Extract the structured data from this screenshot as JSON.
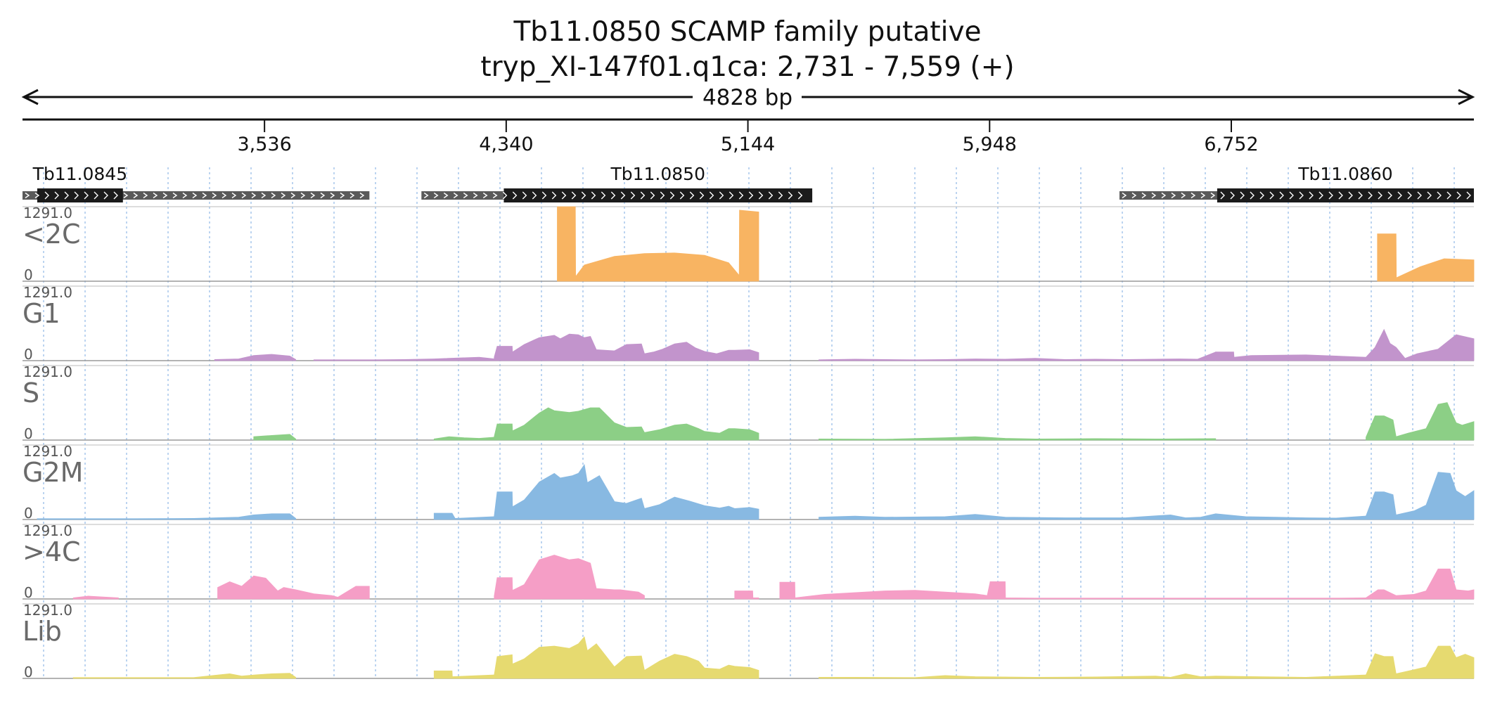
{
  "header": {
    "title": "Tb11.0850  SCAMP family  putative",
    "subtitle": "tryp_XI-147f01.q1ca: 2,731 - 7,559 (+)",
    "span_label": "4828 bp"
  },
  "chart_data": {
    "type": "area",
    "x_range": [
      2731,
      7559
    ],
    "x_ticks": [
      {
        "value": 3536,
        "label": "3,536"
      },
      {
        "value": 4340,
        "label": "4,340"
      },
      {
        "value": 5144,
        "label": "5,144"
      },
      {
        "value": 5948,
        "label": "5,948"
      },
      {
        "value": 6752,
        "label": "6,752"
      }
    ],
    "genes": [
      {
        "name": "Tb11.0845",
        "utr": [
          2731,
          3885
        ],
        "cds": [
          2780,
          3065
        ]
      },
      {
        "name": "Tb11.0850",
        "utr": [
          4058,
          5358
        ],
        "cds": [
          4332,
          5358
        ]
      },
      {
        "name": "Tb11.0860",
        "utr": [
          6380,
          7559
        ],
        "cds": [
          6705,
          7559
        ]
      }
    ],
    "y_max_label": "1291.0",
    "y_min_label": "0",
    "y_max": 1291,
    "series": [
      {
        "name": "<2C",
        "color": "#f8b462",
        "segments": [
          {
            "x": [
              4510,
              4570,
              4571,
              4600,
              4700,
              4800,
              4900,
              5000,
              5080,
              5115,
              5116,
              5180
            ],
            "y": [
              1291,
              1291,
              80,
              280,
              430,
              480,
              490,
              450,
              320,
              100,
              1230,
              1200
            ]
          },
          {
            "x": [
              7238,
              7300,
              7301,
              7380,
              7460,
              7559
            ],
            "y": [
              820,
              820,
              60,
              250,
              390,
              370
            ]
          }
        ]
      },
      {
        "name": "G1",
        "color": "#c294cc",
        "segments": [
          {
            "x": [
              3370,
              3450,
              3500,
              3560,
              3620,
              3640
            ],
            "y": [
              20,
              30,
              90,
              110,
              80,
              20
            ]
          },
          {
            "x": [
              3700,
              3900,
              4000,
              4100,
              4250,
              4300
            ],
            "y": [
              15,
              15,
              20,
              30,
              60,
              30
            ]
          },
          {
            "x": [
              4300,
              4310,
              4360,
              4361,
              4400,
              4450,
              4500,
              4520,
              4550,
              4580,
              4600,
              4620,
              4640,
              4700,
              4740,
              4790,
              4800,
              4830,
              4860,
              4900,
              4940,
              4970,
              5000,
              5040,
              5080,
              5100,
              5150,
              5180
            ],
            "y": [
              60,
              250,
              250,
              150,
              280,
              400,
              440,
              380,
              460,
              450,
              400,
              420,
              190,
              170,
              280,
              290,
              120,
              150,
              200,
              290,
              320,
              220,
              160,
              120,
              180,
              180,
              190,
              140
            ]
          },
          {
            "x": [
              5380,
              5500,
              5700,
              5800,
              5900,
              6000,
              6100,
              6200,
              6300,
              6400,
              6500,
              6580,
              6640,
              6700
            ],
            "y": [
              15,
              25,
              15,
              20,
              30,
              25,
              40,
              20,
              25,
              20,
              25,
              30,
              25,
              150
            ]
          },
          {
            "x": [
              6700,
              6760,
              6761,
              6820,
              7000,
              7100,
              7200,
              7230,
              7260,
              7280,
              7300,
              7330,
              7370,
              7440,
              7500,
              7559
            ],
            "y": [
              150,
              150,
              60,
              90,
              100,
              80,
              60,
              230,
              540,
              300,
              230,
              40,
              120,
              200,
              450,
              380
            ]
          }
        ]
      },
      {
        "name": "S",
        "color": "#8ccf86",
        "segments": [
          {
            "x": [
              3500,
              3560,
              3620,
              3640
            ],
            "y": [
              60,
              80,
              100,
              20
            ]
          },
          {
            "x": [
              4100,
              4150,
              4200,
              4250,
              4300
            ],
            "y": [
              20,
              60,
              40,
              30,
              50
            ]
          },
          {
            "x": [
              4300,
              4310,
              4360,
              4361,
              4400,
              4450,
              4480,
              4500,
              4550,
              4580,
              4620,
              4650,
              4700,
              4740,
              4790,
              4800,
              4850,
              4900,
              4940,
              4980,
              5000,
              5050,
              5080,
              5100,
              5150,
              5180
            ],
            "y": [
              60,
              280,
              280,
              160,
              260,
              470,
              560,
              510,
              480,
              500,
              560,
              560,
              300,
              220,
              230,
              130,
              180,
              260,
              280,
              200,
              150,
              120,
              200,
              200,
              180,
              120
            ]
          },
          {
            "x": [
              5380,
              5600,
              5800,
              5900,
              6000,
              6100,
              6300,
              6500,
              6700
            ],
            "y": [
              20,
              15,
              40,
              60,
              30,
              20,
              25,
              20,
              25
            ]
          },
          {
            "x": [
              7200,
              7230,
              7260,
              7290,
              7300,
              7340,
              7400,
              7440,
              7470,
              7500,
              7520,
              7559
            ],
            "y": [
              50,
              420,
              420,
              350,
              60,
              120,
              200,
              620,
              650,
              300,
              260,
              320
            ]
          }
        ]
      },
      {
        "name": "G2M",
        "color": "#88b9e2",
        "segments": [
          {
            "x": [
              2780,
              2900,
              3100,
              3300,
              3450,
              3500,
              3560,
              3620,
              3640
            ],
            "y": [
              15,
              15,
              15,
              20,
              40,
              80,
              100,
              100,
              20
            ]
          },
          {
            "x": [
              4100,
              4160,
              4170,
              4300
            ],
            "y": [
              110,
              110,
              20,
              50
            ]
          },
          {
            "x": [
              4300,
              4310,
              4360,
              4361,
              4400,
              4450,
              4500,
              4520,
              4560,
              4580,
              4600,
              4610,
              4650,
              4700,
              4740,
              4790,
              4800,
              4850,
              4900,
              4950,
              5000,
              5050,
              5080,
              5100,
              5150,
              5180
            ],
            "y": [
              60,
              480,
              480,
              220,
              340,
              650,
              800,
              720,
              760,
              800,
              950,
              640,
              760,
              310,
              280,
              370,
              190,
              260,
              390,
              320,
              240,
              200,
              230,
              190,
              210,
              180
            ]
          },
          {
            "x": [
              5380,
              5500,
              5600,
              5800,
              5900,
              6000,
              6200,
              6400,
              6550,
              6600,
              6650,
              6700,
              6800,
              6900,
              7000,
              7100,
              7200
            ],
            "y": [
              40,
              60,
              40,
              50,
              90,
              40,
              30,
              30,
              80,
              30,
              40,
              100,
              50,
              40,
              30,
              25,
              60
            ]
          },
          {
            "x": [
              7200,
              7230,
              7260,
              7290,
              7300,
              7360,
              7400,
              7440,
              7480,
              7500,
              7530,
              7559
            ],
            "y": [
              60,
              480,
              480,
              430,
              80,
              150,
              250,
              820,
              800,
              500,
              400,
              500
            ]
          }
        ]
      },
      {
        "name": ">4C",
        "color": "#f59ec6",
        "segments": [
          {
            "x": [
              2900,
              2950,
              3050
            ],
            "y": [
              20,
              50,
              20
            ]
          },
          {
            "x": [
              3380,
              3420,
              3460,
              3500,
              3540,
              3580,
              3600,
              3640,
              3700,
              3760,
              3780,
              3840,
              3885
            ],
            "y": [
              200,
              300,
              220,
              400,
              360,
              140,
              200,
              160,
              90,
              60,
              30,
              220,
              220
            ]
          },
          {
            "x": [
              4300,
              4310,
              4360,
              4361,
              4400,
              4450,
              4500,
              4550,
              4580,
              4620,
              4640,
              4700,
              4720,
              4780,
              4800
            ],
            "y": [
              50,
              370,
              370,
              150,
              250,
              680,
              760,
              680,
              700,
              620,
              180,
              160,
              160,
              120,
              60
            ]
          },
          {
            "x": [
              5100,
              5160,
              5161,
              5180
            ],
            "y": [
              140,
              140,
              20,
              20
            ]
          },
          {
            "x": [
              5250,
              5300,
              5301,
              5400,
              5600,
              5700,
              5800,
              5900,
              5940,
              5950
            ],
            "y": [
              290,
              290,
              20,
              80,
              140,
              150,
              120,
              90,
              60,
              300
            ]
          },
          {
            "x": [
              5950,
              6000,
              6001,
              6100,
              6300,
              6500,
              6700,
              6900,
              7100,
              7200
            ],
            "y": [
              300,
              300,
              20,
              15,
              15,
              15,
              15,
              15,
              15,
              20
            ]
          },
          {
            "x": [
              7200,
              7240,
              7260,
              7300,
              7360,
              7400,
              7440,
              7480,
              7500,
              7540,
              7559
            ],
            "y": [
              20,
              160,
              160,
              60,
              80,
              140,
              520,
              520,
              160,
              140,
              160
            ]
          }
        ]
      },
      {
        "name": "Lib",
        "color": "#e6da70",
        "segments": [
          {
            "x": [
              2900,
              3300,
              3380,
              3420,
              3460,
              3500,
              3560,
              3620,
              3640
            ],
            "y": [
              15,
              15,
              60,
              80,
              40,
              60,
              80,
              90,
              20
            ]
          },
          {
            "x": [
              4100,
              4160,
              4161,
              4300
            ],
            "y": [
              130,
              130,
              30,
              60
            ]
          },
          {
            "x": [
              4300,
              4310,
              4360,
              4361,
              4400,
              4450,
              4500,
              4550,
              4580,
              4600,
              4610,
              4640,
              4700,
              4740,
              4790,
              4800,
              4850,
              4900,
              4940,
              4980,
              5000,
              5050,
              5080,
              5100,
              5150,
              5180
            ],
            "y": [
              60,
              380,
              410,
              250,
              340,
              540,
              560,
              520,
              600,
              720,
              480,
              600,
              200,
              380,
              390,
              140,
              300,
              420,
              380,
              300,
              180,
              160,
              230,
              210,
              190,
              140
            ]
          },
          {
            "x": [
              5380,
              5500,
              5700,
              5800,
              5900,
              6100,
              6300,
              6500,
              6550,
              6600,
              6650,
              6700,
              7000,
              7200
            ],
            "y": [
              20,
              20,
              15,
              50,
              30,
              20,
              25,
              40,
              20,
              80,
              30,
              40,
              20,
              60
            ]
          },
          {
            "x": [
              7200,
              7230,
              7260,
              7290,
              7300,
              7360,
              7400,
              7440,
              7480,
              7500,
              7530,
              7559
            ],
            "y": [
              60,
              430,
              380,
              380,
              80,
              150,
              200,
              560,
              560,
              360,
              420,
              360
            ]
          }
        ]
      }
    ]
  }
}
